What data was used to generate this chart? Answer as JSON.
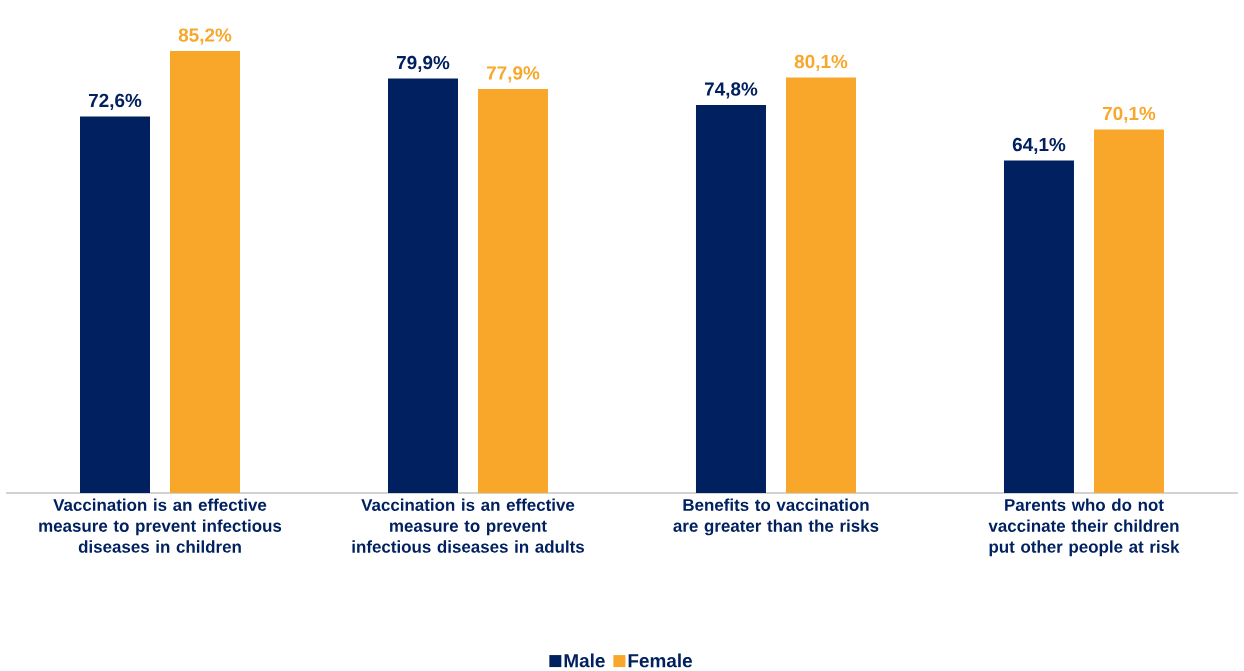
{
  "chart_data": {
    "type": "bar",
    "categories": [
      "Vaccination is an effective measure to prevent infectious diseases in children",
      "Vaccination is an effective measure to prevent infectious diseases in adults",
      "Benefits to vaccination are greater than the risks",
      "Parents who do not vaccinate their children put other people at risk"
    ],
    "series": [
      {
        "name": "Male",
        "color": "#002060",
        "values": [
          72.6,
          79.9,
          74.8,
          64.1
        ],
        "value_labels": [
          "72,6%",
          "79,9%",
          "74,8%",
          "64,1%"
        ]
      },
      {
        "name": "Female",
        "color": "#f9a72b",
        "values": [
          85.2,
          77.9,
          80.1,
          70.1
        ],
        "value_labels": [
          "85,2%",
          "77,9%",
          "80,1%",
          "70,1%"
        ]
      }
    ],
    "legend": "bottom"
  }
}
